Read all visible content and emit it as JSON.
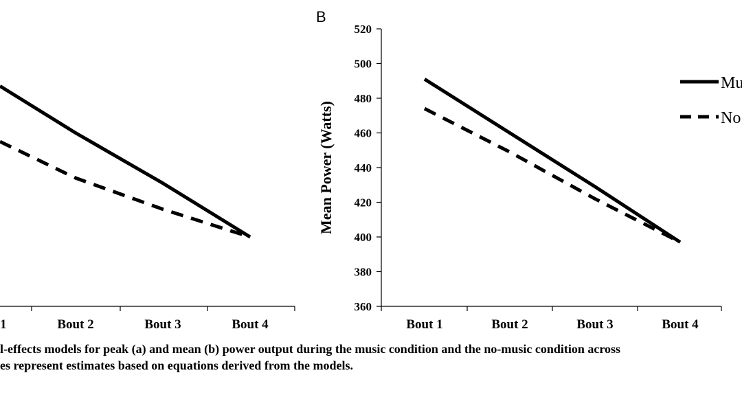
{
  "chart_data": [
    {
      "type": "line",
      "panel_label": "",
      "title": "",
      "xlabel": "",
      "ylabel": "",
      "categories": [
        "1",
        "Bout 2",
        "Bout 3",
        "Bout 4"
      ],
      "grid": false,
      "series": [
        {
          "name": "",
          "style": "solid",
          "values": [
            487,
            460,
            431,
            400
          ]
        },
        {
          "name": "",
          "style": "dashed",
          "values": [
            455,
            434,
            416,
            400
          ]
        }
      ]
    },
    {
      "type": "line",
      "panel_label": "B",
      "title": "",
      "xlabel": "",
      "ylabel": "Mean Power (Watts)",
      "categories": [
        "Bout 1",
        "Bout 2",
        "Bout 3",
        "Bout 4"
      ],
      "ylim": [
        360,
        520
      ],
      "yticks": [
        "360",
        "380",
        "400",
        "420",
        "440",
        "460",
        "480",
        "500",
        "520"
      ],
      "grid": false,
      "legend_position": "right",
      "series": [
        {
          "name": "Mu",
          "style": "solid",
          "values": [
            491,
            460,
            429,
            397
          ]
        },
        {
          "name": "No",
          "style": "dashed",
          "values": [
            474,
            449,
            422,
            397
          ]
        }
      ]
    }
  ],
  "caption": {
    "line1": "l-effects models for peak (a) and mean (b) power output during the music condition and the no-music condition across",
    "line2": "es represent estimates based on equations derived from the models."
  }
}
